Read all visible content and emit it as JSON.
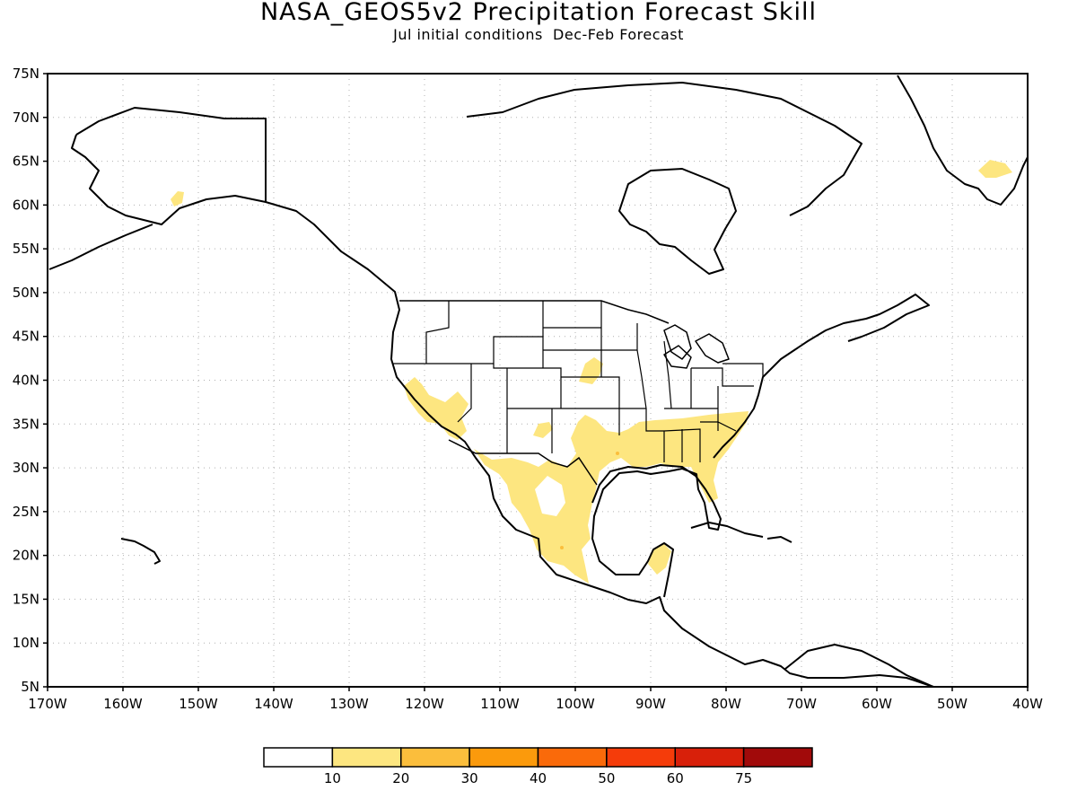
{
  "title": "NASA_GEOS5v2 Precipitation Forecast Skill",
  "subtitle": "Jul initial conditions  Dec-Feb Forecast",
  "map": {
    "projection": "cylindrical lat-lon",
    "lon_range": [
      -170,
      -40
    ],
    "lat_range": [
      5,
      75
    ],
    "grid": true,
    "lat_labels": [
      "75N",
      "70N",
      "65N",
      "60N",
      "55N",
      "50N",
      "45N",
      "40N",
      "35N",
      "30N",
      "25N",
      "20N",
      "15N",
      "10N",
      "5N"
    ],
    "lon_labels": [
      "170W",
      "160W",
      "150W",
      "140W",
      "130W",
      "120W",
      "110W",
      "100W",
      "90W",
      "80W",
      "70W",
      "60W",
      "50W",
      "40W"
    ]
  },
  "colors": {
    "bin_10_20": "#fde680",
    "bin_20_30": "#fbbe3c",
    "bin_30_40": "#fb9a0c",
    "bin_40_50": "#fa6a0a",
    "bin_50_60": "#f53c0a",
    "bin_60_75": "#d8200a",
    "bin_75_plus": "#a10a0a",
    "coast": "#000000",
    "grid": "#b0b0b0"
  },
  "colorbar": {
    "colors": [
      "#ffffff",
      "#fde680",
      "#fbbe3c",
      "#fb9a0c",
      "#fa6a0a",
      "#f53c0a",
      "#d8200a",
      "#a10a0a"
    ],
    "labels": [
      "10",
      "20",
      "30",
      "40",
      "50",
      "60",
      "75"
    ]
  }
}
